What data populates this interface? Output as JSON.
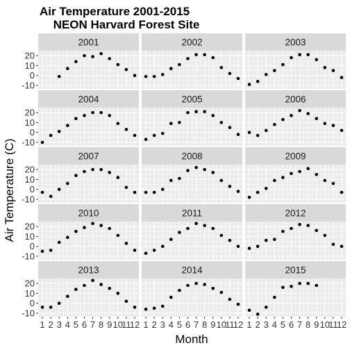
{
  "chart_data": {
    "type": "scatter",
    "title_line1": "Air Temperature 2001-2015",
    "title_line2": "NEON Harvard Forest Site",
    "xlabel": "Month",
    "ylabel": "Air Temperature (C)",
    "x_ticks": [
      1,
      2,
      3,
      4,
      5,
      6,
      7,
      8,
      9,
      10,
      11,
      12
    ],
    "y_ticks": [
      -10,
      0,
      10,
      20
    ],
    "xlim": [
      0.5,
      12.5
    ],
    "ylim": [
      -13.5,
      25
    ],
    "facet_layout": {
      "columns": 3,
      "rows": 5
    },
    "panel_background": "#ebebeb",
    "strip_background": "#d9d9d9",
    "point_color": "#000000",
    "panels": [
      {
        "label": "2001",
        "points": [
          [
            3,
            -1
          ],
          [
            4,
            7
          ],
          [
            5,
            14
          ],
          [
            6,
            20
          ],
          [
            7,
            19
          ],
          [
            8,
            22
          ],
          [
            9,
            17
          ],
          [
            10,
            11
          ],
          [
            11,
            6
          ],
          [
            12,
            0
          ]
        ]
      },
      {
        "label": "2002",
        "points": [
          [
            1,
            -1
          ],
          [
            2,
            -1
          ],
          [
            3,
            1
          ],
          [
            4,
            7
          ],
          [
            5,
            11
          ],
          [
            6,
            17
          ],
          [
            7,
            21
          ],
          [
            8,
            21
          ],
          [
            9,
            18
          ],
          [
            10,
            8
          ],
          [
            11,
            2
          ],
          [
            12,
            -3
          ]
        ]
      },
      {
        "label": "2003",
        "points": [
          [
            1,
            -9
          ],
          [
            2,
            -6
          ],
          [
            3,
            1
          ],
          [
            4,
            5
          ],
          [
            5,
            11
          ],
          [
            6,
            18
          ],
          [
            7,
            21
          ],
          [
            8,
            21
          ],
          [
            9,
            16
          ],
          [
            10,
            8
          ],
          [
            11,
            5
          ],
          [
            12,
            -2
          ]
        ]
      },
      {
        "label": "2004",
        "points": [
          [
            1,
            -10
          ],
          [
            2,
            -3
          ],
          [
            3,
            1
          ],
          [
            4,
            7
          ],
          [
            5,
            14
          ],
          [
            6,
            17
          ],
          [
            7,
            20
          ],
          [
            8,
            20
          ],
          [
            9,
            17
          ],
          [
            10,
            9
          ],
          [
            11,
            3
          ],
          [
            12,
            -3
          ]
        ]
      },
      {
        "label": "2005",
        "points": [
          [
            1,
            -7
          ],
          [
            2,
            -3
          ],
          [
            3,
            -1
          ],
          [
            4,
            9
          ],
          [
            5,
            10
          ],
          [
            6,
            20
          ],
          [
            7,
            21
          ],
          [
            8,
            21
          ],
          [
            9,
            17
          ],
          [
            10,
            10
          ],
          [
            11,
            5
          ],
          [
            12,
            -2
          ]
        ]
      },
      {
        "label": "2006",
        "points": [
          [
            1,
            0
          ],
          [
            2,
            -3
          ],
          [
            3,
            2
          ],
          [
            4,
            8
          ],
          [
            5,
            13
          ],
          [
            6,
            17
          ],
          [
            7,
            22
          ],
          [
            8,
            19
          ],
          [
            9,
            14
          ],
          [
            10,
            9
          ],
          [
            11,
            7
          ],
          [
            12,
            2
          ]
        ]
      },
      {
        "label": "2007",
        "points": [
          [
            1,
            -3
          ],
          [
            2,
            -7
          ],
          [
            3,
            0
          ],
          [
            4,
            6
          ],
          [
            5,
            14
          ],
          [
            6,
            18
          ],
          [
            7,
            20
          ],
          [
            8,
            20
          ],
          [
            9,
            17
          ],
          [
            10,
            12
          ],
          [
            11,
            2
          ],
          [
            12,
            -3
          ]
        ]
      },
      {
        "label": "2008",
        "points": [
          [
            1,
            -3
          ],
          [
            2,
            -3
          ],
          [
            3,
            0
          ],
          [
            4,
            9
          ],
          [
            5,
            11
          ],
          [
            6,
            19
          ],
          [
            7,
            22
          ],
          [
            8,
            20
          ],
          [
            9,
            17
          ],
          [
            10,
            9
          ],
          [
            11,
            3
          ],
          [
            12,
            -2
          ]
        ]
      },
      {
        "label": "2009",
        "points": [
          [
            1,
            -8
          ],
          [
            2,
            -3
          ],
          [
            3,
            1
          ],
          [
            4,
            9
          ],
          [
            5,
            12
          ],
          [
            6,
            16
          ],
          [
            7,
            18
          ],
          [
            8,
            21
          ],
          [
            9,
            15
          ],
          [
            10,
            9
          ],
          [
            11,
            6
          ],
          [
            12,
            -3
          ]
        ]
      },
      {
        "label": "2010",
        "points": [
          [
            1,
            -5
          ],
          [
            2,
            -4
          ],
          [
            3,
            4
          ],
          [
            4,
            9
          ],
          [
            5,
            15
          ],
          [
            6,
            19
          ],
          [
            7,
            23
          ],
          [
            8,
            21
          ],
          [
            9,
            18
          ],
          [
            10,
            11
          ],
          [
            11,
            3
          ],
          [
            12,
            -4
          ]
        ]
      },
      {
        "label": "2011",
        "points": [
          [
            1,
            -7
          ],
          [
            2,
            -4
          ],
          [
            3,
            0
          ],
          [
            4,
            7
          ],
          [
            5,
            14
          ],
          [
            6,
            18
          ],
          [
            7,
            23
          ],
          [
            8,
            21
          ],
          [
            9,
            18
          ],
          [
            10,
            11
          ],
          [
            11,
            6
          ],
          [
            12,
            0
          ]
        ]
      },
      {
        "label": "2012",
        "points": [
          [
            1,
            -2
          ],
          [
            2,
            0
          ],
          [
            3,
            6
          ],
          [
            4,
            7
          ],
          [
            5,
            15
          ],
          [
            6,
            18
          ],
          [
            7,
            22
          ],
          [
            8,
            21
          ],
          [
            9,
            16
          ],
          [
            10,
            11
          ],
          [
            11,
            2
          ],
          [
            12,
            0
          ]
        ]
      },
      {
        "label": "2013",
        "points": [
          [
            1,
            -4
          ],
          [
            2,
            -4
          ],
          [
            3,
            0
          ],
          [
            4,
            7
          ],
          [
            5,
            14
          ],
          [
            6,
            18
          ],
          [
            7,
            23
          ],
          [
            8,
            19
          ],
          [
            9,
            15
          ],
          [
            10,
            10
          ],
          [
            11,
            2
          ],
          [
            12,
            -4
          ]
        ]
      },
      {
        "label": "2014",
        "points": [
          [
            1,
            -6
          ],
          [
            2,
            -5
          ],
          [
            3,
            -3
          ],
          [
            4,
            6
          ],
          [
            5,
            13
          ],
          [
            6,
            18
          ],
          [
            7,
            20
          ],
          [
            8,
            19
          ],
          [
            9,
            15
          ],
          [
            10,
            11
          ],
          [
            11,
            4
          ],
          [
            12,
            -1
          ]
        ]
      },
      {
        "label": "2015",
        "points": [
          [
            1,
            -7
          ],
          [
            2,
            -11
          ],
          [
            3,
            -4
          ],
          [
            4,
            6
          ],
          [
            5,
            16
          ],
          [
            6,
            17
          ],
          [
            7,
            20
          ],
          [
            8,
            20
          ],
          [
            9,
            18
          ]
        ]
      }
    ]
  }
}
